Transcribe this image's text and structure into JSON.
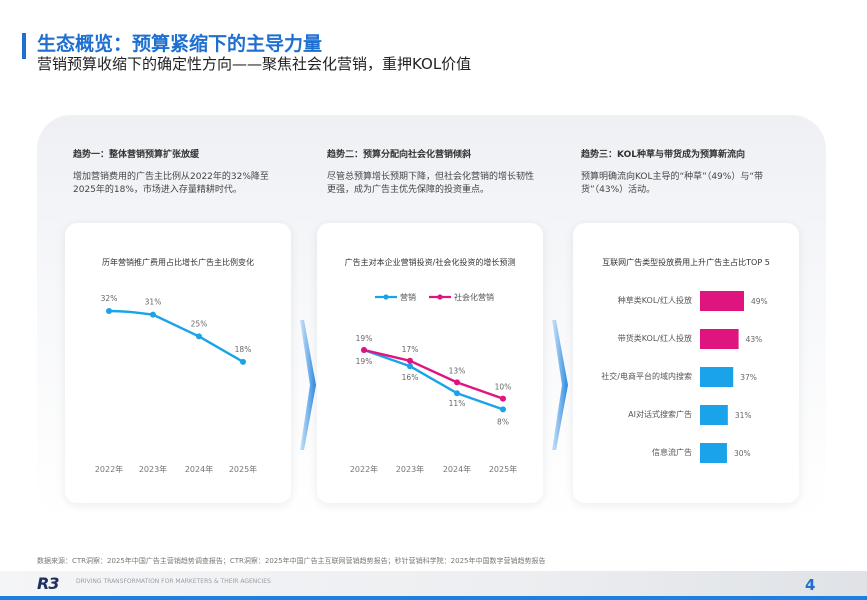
{
  "header": {
    "title": "生态概览：预算紧缩下的主导力量",
    "subtitle": "营销预算收缩下的确定性方向——聚焦社会化营销，重押KOL价值"
  },
  "trends": [
    {
      "title": "趋势一：整体营销预算扩张放缓",
      "desc": "增加营销费用的广告主比例从2022年的32%降至2025年的18%，市场进入存量精耕时代。"
    },
    {
      "title": "趋势二：预算分配向社会化营销倾斜",
      "desc": "尽管总预算增长预期下降，但社会化营销的增长韧性更强，成为广告主优先保障的投资重点。"
    },
    {
      "title": "趋势三：KOL种草与带货成为预算新流向",
      "desc": "预算明确流向KOL主导的“种草”（49%）与“带货”（43%）活动。"
    }
  ],
  "chart_data": [
    {
      "type": "line",
      "title": "历年营销推广费用占比增长广告主比例变化",
      "categories": [
        "2022年",
        "2023年",
        "2024年",
        "2025年"
      ],
      "series": [
        {
          "values": [
            32,
            31,
            25,
            18
          ],
          "labels": [
            "32%",
            "31%",
            "25%",
            "18%"
          ],
          "color": "#1aa3e8"
        }
      ]
    },
    {
      "type": "line",
      "title": "广告主对本企业营销投资/社会化投资的增长预测",
      "categories": [
        "2022年",
        "2023年",
        "2024年",
        "2025年"
      ],
      "legend": [
        "营销",
        "社会化营销"
      ],
      "series": [
        {
          "name": "营销",
          "values": [
            19,
            16,
            11,
            8
          ],
          "labels": [
            "19%",
            "16%",
            "11%",
            "8%"
          ],
          "color": "#1aa3e8"
        },
        {
          "name": "社会化营销",
          "values": [
            19,
            17,
            13,
            10
          ],
          "labels": [
            "19%",
            "17%",
            "13%",
            "10%"
          ],
          "color": "#e0147f"
        }
      ]
    },
    {
      "type": "bar",
      "title": "互联网广告类型投放费用上升广告主占比TOP 5",
      "categories": [
        "种草类KOL/红人投放",
        "带货类KOL/红人投放",
        "社交/电商平台的域内搜索",
        "AI对话式搜索广告",
        "信息流广告"
      ],
      "values": [
        49,
        43,
        37,
        31,
        30
      ],
      "labels": [
        "49%",
        "43%",
        "37%",
        "31%",
        "30%"
      ],
      "colors": [
        "#e0147f",
        "#e0147f",
        "#1aa3e8",
        "#1aa3e8",
        "#1aa3e8"
      ]
    }
  ],
  "source": "数据来源：CTR洞察：2025年中国广告主营销趋势调查报告；CTR洞察：2025年中国广告主互联网营销趋势报告；秒针营销科学院：2025年中国数字营销趋势报告",
  "footer": {
    "logo": "R3",
    "tagline": "DRIVING TRANSFORMATION FOR MARKETERS & THEIR AGENCIES",
    "page_number": "4"
  }
}
